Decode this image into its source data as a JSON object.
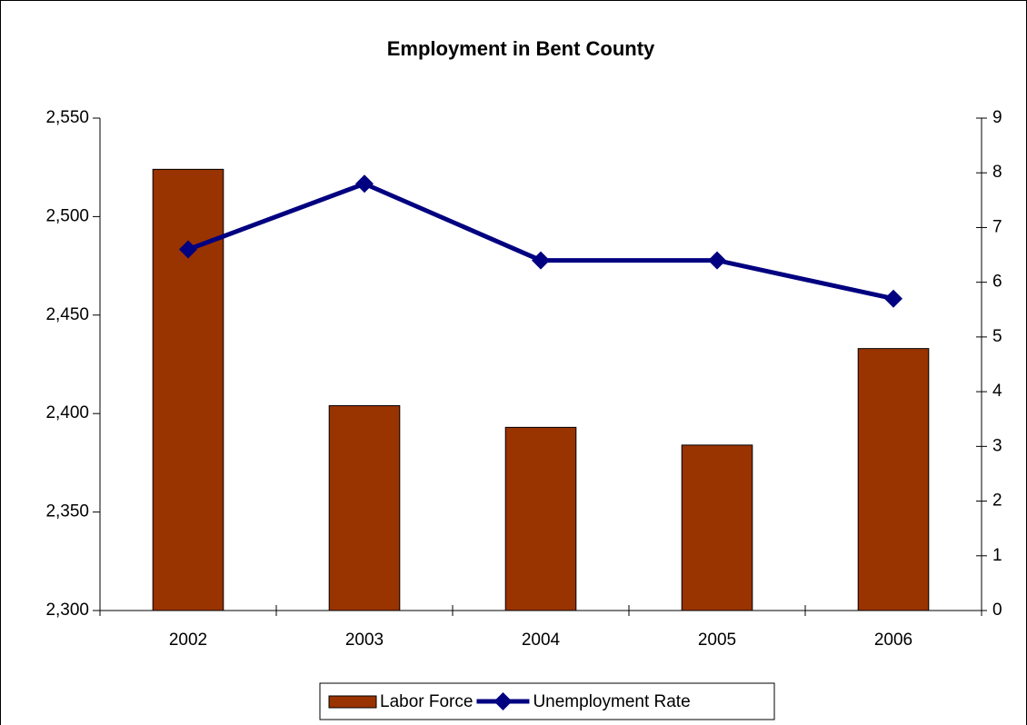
{
  "chart_data": {
    "type": "bar",
    "title": "Employment in Bent County",
    "categories": [
      "2002",
      "2003",
      "2004",
      "2005",
      "2006"
    ],
    "series": [
      {
        "name": "Labor Force",
        "color": "#993300",
        "values": [
          2524,
          2404,
          2393,
          2384,
          2433
        ]
      },
      {
        "name": "Unemployment Rate",
        "type": "line",
        "axis": "y2",
        "color": "#000080",
        "values": [
          6.6,
          7.8,
          6.4,
          6.4,
          5.7
        ]
      }
    ],
    "ylim": [
      2300,
      2550
    ],
    "yticks": [
      {
        "value": 2300,
        "label": "2,300"
      },
      {
        "value": 2350,
        "label": "2,350"
      },
      {
        "value": 2400,
        "label": "2,400"
      },
      {
        "value": 2450,
        "label": "2,450"
      },
      {
        "value": 2500,
        "label": "2,500"
      },
      {
        "value": 2550,
        "label": "2,550"
      }
    ],
    "y2lim": [
      0,
      9
    ],
    "y2ticks": [
      0,
      1,
      2,
      3,
      4,
      5,
      6,
      7,
      8,
      9
    ],
    "grid": false,
    "legend": "bottom"
  }
}
